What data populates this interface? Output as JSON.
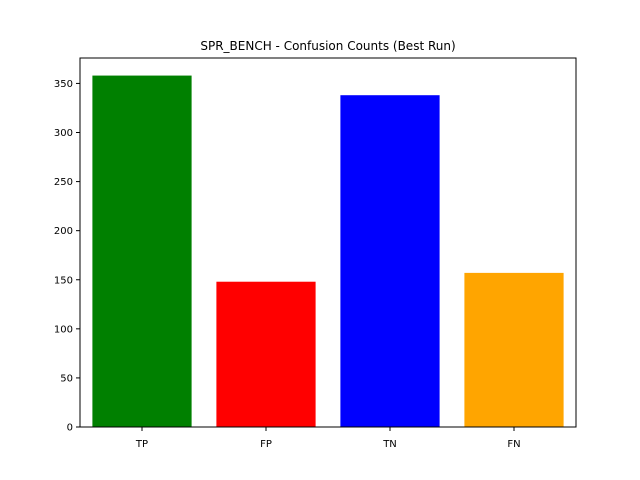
{
  "chart_data": {
    "type": "bar",
    "title": "SPR_BENCH - Confusion Counts (Best Run)",
    "xlabel": "",
    "ylabel": "",
    "categories": [
      "TP",
      "FP",
      "TN",
      "FN"
    ],
    "values": [
      358,
      148,
      338,
      157
    ],
    "colors": [
      "#008000",
      "#ff0000",
      "#0000ff",
      "#ffa500"
    ],
    "ylim": [
      0,
      375.9
    ],
    "yticks": [
      0,
      50,
      100,
      150,
      200,
      250,
      300,
      350
    ],
    "grid": false,
    "legend": "none"
  }
}
